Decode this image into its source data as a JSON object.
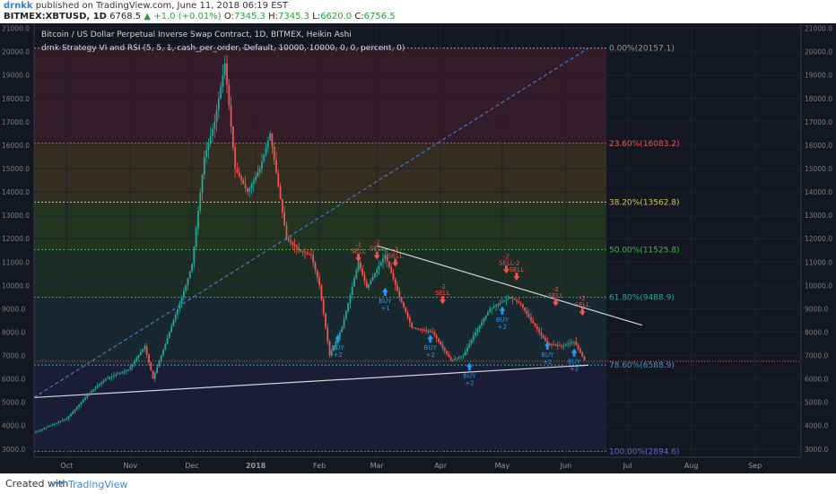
{
  "header": {
    "username": "drnkk",
    "published_text": "published on TradingView.com, June 11, 2018 06:19 EST",
    "symbol": "BITMEX:XBTUSD, 1D",
    "price": "6768.5",
    "change": "▲ +1.0 (+0.01%)",
    "ohlc": {
      "o_label": "O:",
      "o": "7345.3",
      "h_label": "H:",
      "h": "7345.3",
      "l_label": "L:",
      "l": "6620.0",
      "c_label": "C:",
      "c": "6756.5"
    }
  },
  "legend": {
    "title": "Bitcoin / US Dollar Perpetual Inverse Swap Contract, 1D, BITMEX, Heikin Ashi",
    "strategy": "drnk Strategy VI and RSI (5, 5, 1, cash_per_order, Default, 10000, 10000, 0, 0, percent, 0)"
  },
  "footer": {
    "created": "Created with",
    "brand": "TradingView"
  },
  "colors": {
    "background": "#131722",
    "up": "#26a69a",
    "down": "#ef5350",
    "buy": "#2196f3",
    "sell": "#ef5350"
  },
  "chart_data": {
    "type": "candlestick",
    "style": "Heikin Ashi",
    "title": "Bitcoin / US Dollar Perpetual Inverse Swap Contract, 1D, BITMEX, Heikin Ashi",
    "ylim": [
      2800,
      21100
    ],
    "y_ticks": [
      "21000.0",
      "20000.0",
      "19000.0",
      "18000.0",
      "17000.0",
      "16000.0",
      "15000.0",
      "14000.0",
      "13000.0",
      "12000.0",
      "11000.0",
      "10000.0",
      "9000.0",
      "8000.0",
      "7000.0",
      "6000.0",
      "5000.0",
      "4000.0",
      "3000.0"
    ],
    "x_ticks": [
      "Oct",
      "Nov",
      "Dec",
      "2018",
      "Feb",
      "Mar",
      "Apr",
      "May",
      "Jun",
      "Jul",
      "Aug",
      "Sep"
    ],
    "x_tick_dates": [
      "2017-10-01",
      "2017-11-01",
      "2017-12-01",
      "2018-01-01",
      "2018-02-01",
      "2018-03-01",
      "2018-04-01",
      "2018-05-01",
      "2018-06-01",
      "2018-07-01",
      "2018-08-01",
      "2018-09-01"
    ],
    "price_path": [
      [
        "2017-09-15",
        3700
      ],
      [
        "2017-10-01",
        4300
      ],
      [
        "2017-10-12",
        5400
      ],
      [
        "2017-10-20",
        6000
      ],
      [
        "2017-10-31",
        6400
      ],
      [
        "2017-11-08",
        7400
      ],
      [
        "2017-11-12",
        6000
      ],
      [
        "2017-11-20",
        8000
      ],
      [
        "2017-11-28",
        10000
      ],
      [
        "2017-12-01",
        10900
      ],
      [
        "2017-12-07",
        15500
      ],
      [
        "2017-12-12",
        17000
      ],
      [
        "2017-12-17",
        19500
      ],
      [
        "2017-12-22",
        15000
      ],
      [
        "2017-12-28",
        14000
      ],
      [
        "2018-01-03",
        15000
      ],
      [
        "2018-01-08",
        16500
      ],
      [
        "2018-01-16",
        12000
      ],
      [
        "2018-01-22",
        11500
      ],
      [
        "2018-01-28",
        11300
      ],
      [
        "2018-02-01",
        10000
      ],
      [
        "2018-02-06",
        7000
      ],
      [
        "2018-02-12",
        8200
      ],
      [
        "2018-02-20",
        11000
      ],
      [
        "2018-02-24",
        9900
      ],
      [
        "2018-03-05",
        11300
      ],
      [
        "2018-03-12",
        9500
      ],
      [
        "2018-03-18",
        8200
      ],
      [
        "2018-03-28",
        8000
      ],
      [
        "2018-04-06",
        6800
      ],
      [
        "2018-04-12",
        7000
      ],
      [
        "2018-04-18",
        8000
      ],
      [
        "2018-04-25",
        9000
      ],
      [
        "2018-05-05",
        9500
      ],
      [
        "2018-05-10",
        9200
      ],
      [
        "2018-05-15",
        8500
      ],
      [
        "2018-05-23",
        7500
      ],
      [
        "2018-05-30",
        7400
      ],
      [
        "2018-06-05",
        7600
      ],
      [
        "2018-06-10",
        6800
      ]
    ],
    "fibonacci": [
      {
        "label": "0.00%(20157.1)",
        "level": 0.0,
        "price": 20157.1,
        "color": "#9598a1"
      },
      {
        "label": "23.60%(16083.2)",
        "level": 0.236,
        "price": 16083.2,
        "color": "#ef5350"
      },
      {
        "label": "38.20%(13562.8)",
        "level": 0.382,
        "price": 13562.8,
        "color": "#d4c74b"
      },
      {
        "label": "50.00%(11525.8)",
        "level": 0.5,
        "price": 11525.8,
        "color": "#4caf50"
      },
      {
        "label": "61.80%(9488.9)",
        "level": 0.618,
        "price": 9488.9,
        "color": "#26a69a"
      },
      {
        "label": "78.60%(6588.9)",
        "level": 0.786,
        "price": 6588.9,
        "color": "#4f8fc0"
      },
      {
        "label": "100.00%(2894.6)",
        "level": 1.0,
        "price": 2894.6,
        "color": "#5b6bc0"
      }
    ],
    "trendlines": [
      {
        "name": "fib-diagonal",
        "from": [
          "2017-09-15",
          5200
        ],
        "to": [
          "2018-06-12",
          20157.1
        ],
        "style": "dashed",
        "color": "#4a76c9"
      },
      {
        "name": "support",
        "from": [
          "2017-09-15",
          5200
        ],
        "to": [
          "2018-06-12",
          6588.9
        ],
        "style": "solid",
        "color": "#d1d4dc"
      },
      {
        "name": "resistance",
        "from": [
          "2018-03-01",
          11700
        ],
        "to": [
          "2018-07-08",
          8300
        ],
        "style": "solid",
        "color": "#d1d4dc"
      }
    ],
    "current_price": 6756.5,
    "signals": [
      {
        "type": "sell",
        "label": "SELL",
        "qty": "-1",
        "date": "2018-02-20",
        "price": 11000
      },
      {
        "type": "buy",
        "label": "BUY",
        "qty": "+2",
        "date": "2018-02-10",
        "price": 7900
      },
      {
        "type": "sell",
        "label": "SELL",
        "qty": "-2",
        "date": "2018-03-01",
        "price": 11100
      },
      {
        "type": "buy",
        "label": "BUY",
        "qty": "+1",
        "date": "2018-03-05",
        "price": 9900
      },
      {
        "type": "sell",
        "label": "SELL",
        "qty": "-1",
        "date": "2018-03-10",
        "price": 10800
      },
      {
        "type": "buy",
        "label": "BUY",
        "qty": "+2",
        "date": "2018-03-27",
        "price": 7900
      },
      {
        "type": "sell",
        "label": "SELL",
        "qty": "-2",
        "date": "2018-04-02",
        "price": 9200
      },
      {
        "type": "buy",
        "label": "BUY",
        "qty": "+2",
        "date": "2018-04-15",
        "price": 6700
      },
      {
        "type": "sell",
        "label": "SELL",
        "qty": "-2",
        "date": "2018-05-03",
        "price": 10500
      },
      {
        "type": "buy",
        "label": "BUY",
        "qty": "+2",
        "date": "2018-05-01",
        "price": 9100
      },
      {
        "type": "sell",
        "label": "SELL",
        "qty": "-2",
        "date": "2018-05-08",
        "price": 10200
      },
      {
        "type": "sell",
        "label": "SELL",
        "qty": "-2",
        "date": "2018-05-27",
        "price": 9100
      },
      {
        "type": "buy",
        "label": "BUY",
        "qty": "+2",
        "date": "2018-05-23",
        "price": 7600
      },
      {
        "type": "buy",
        "label": "BUY",
        "qty": "+2",
        "date": "2018-06-05",
        "price": 7300
      },
      {
        "type": "sell",
        "label": "SELL",
        "qty": "-2",
        "date": "2018-06-09",
        "price": 8700
      }
    ]
  }
}
